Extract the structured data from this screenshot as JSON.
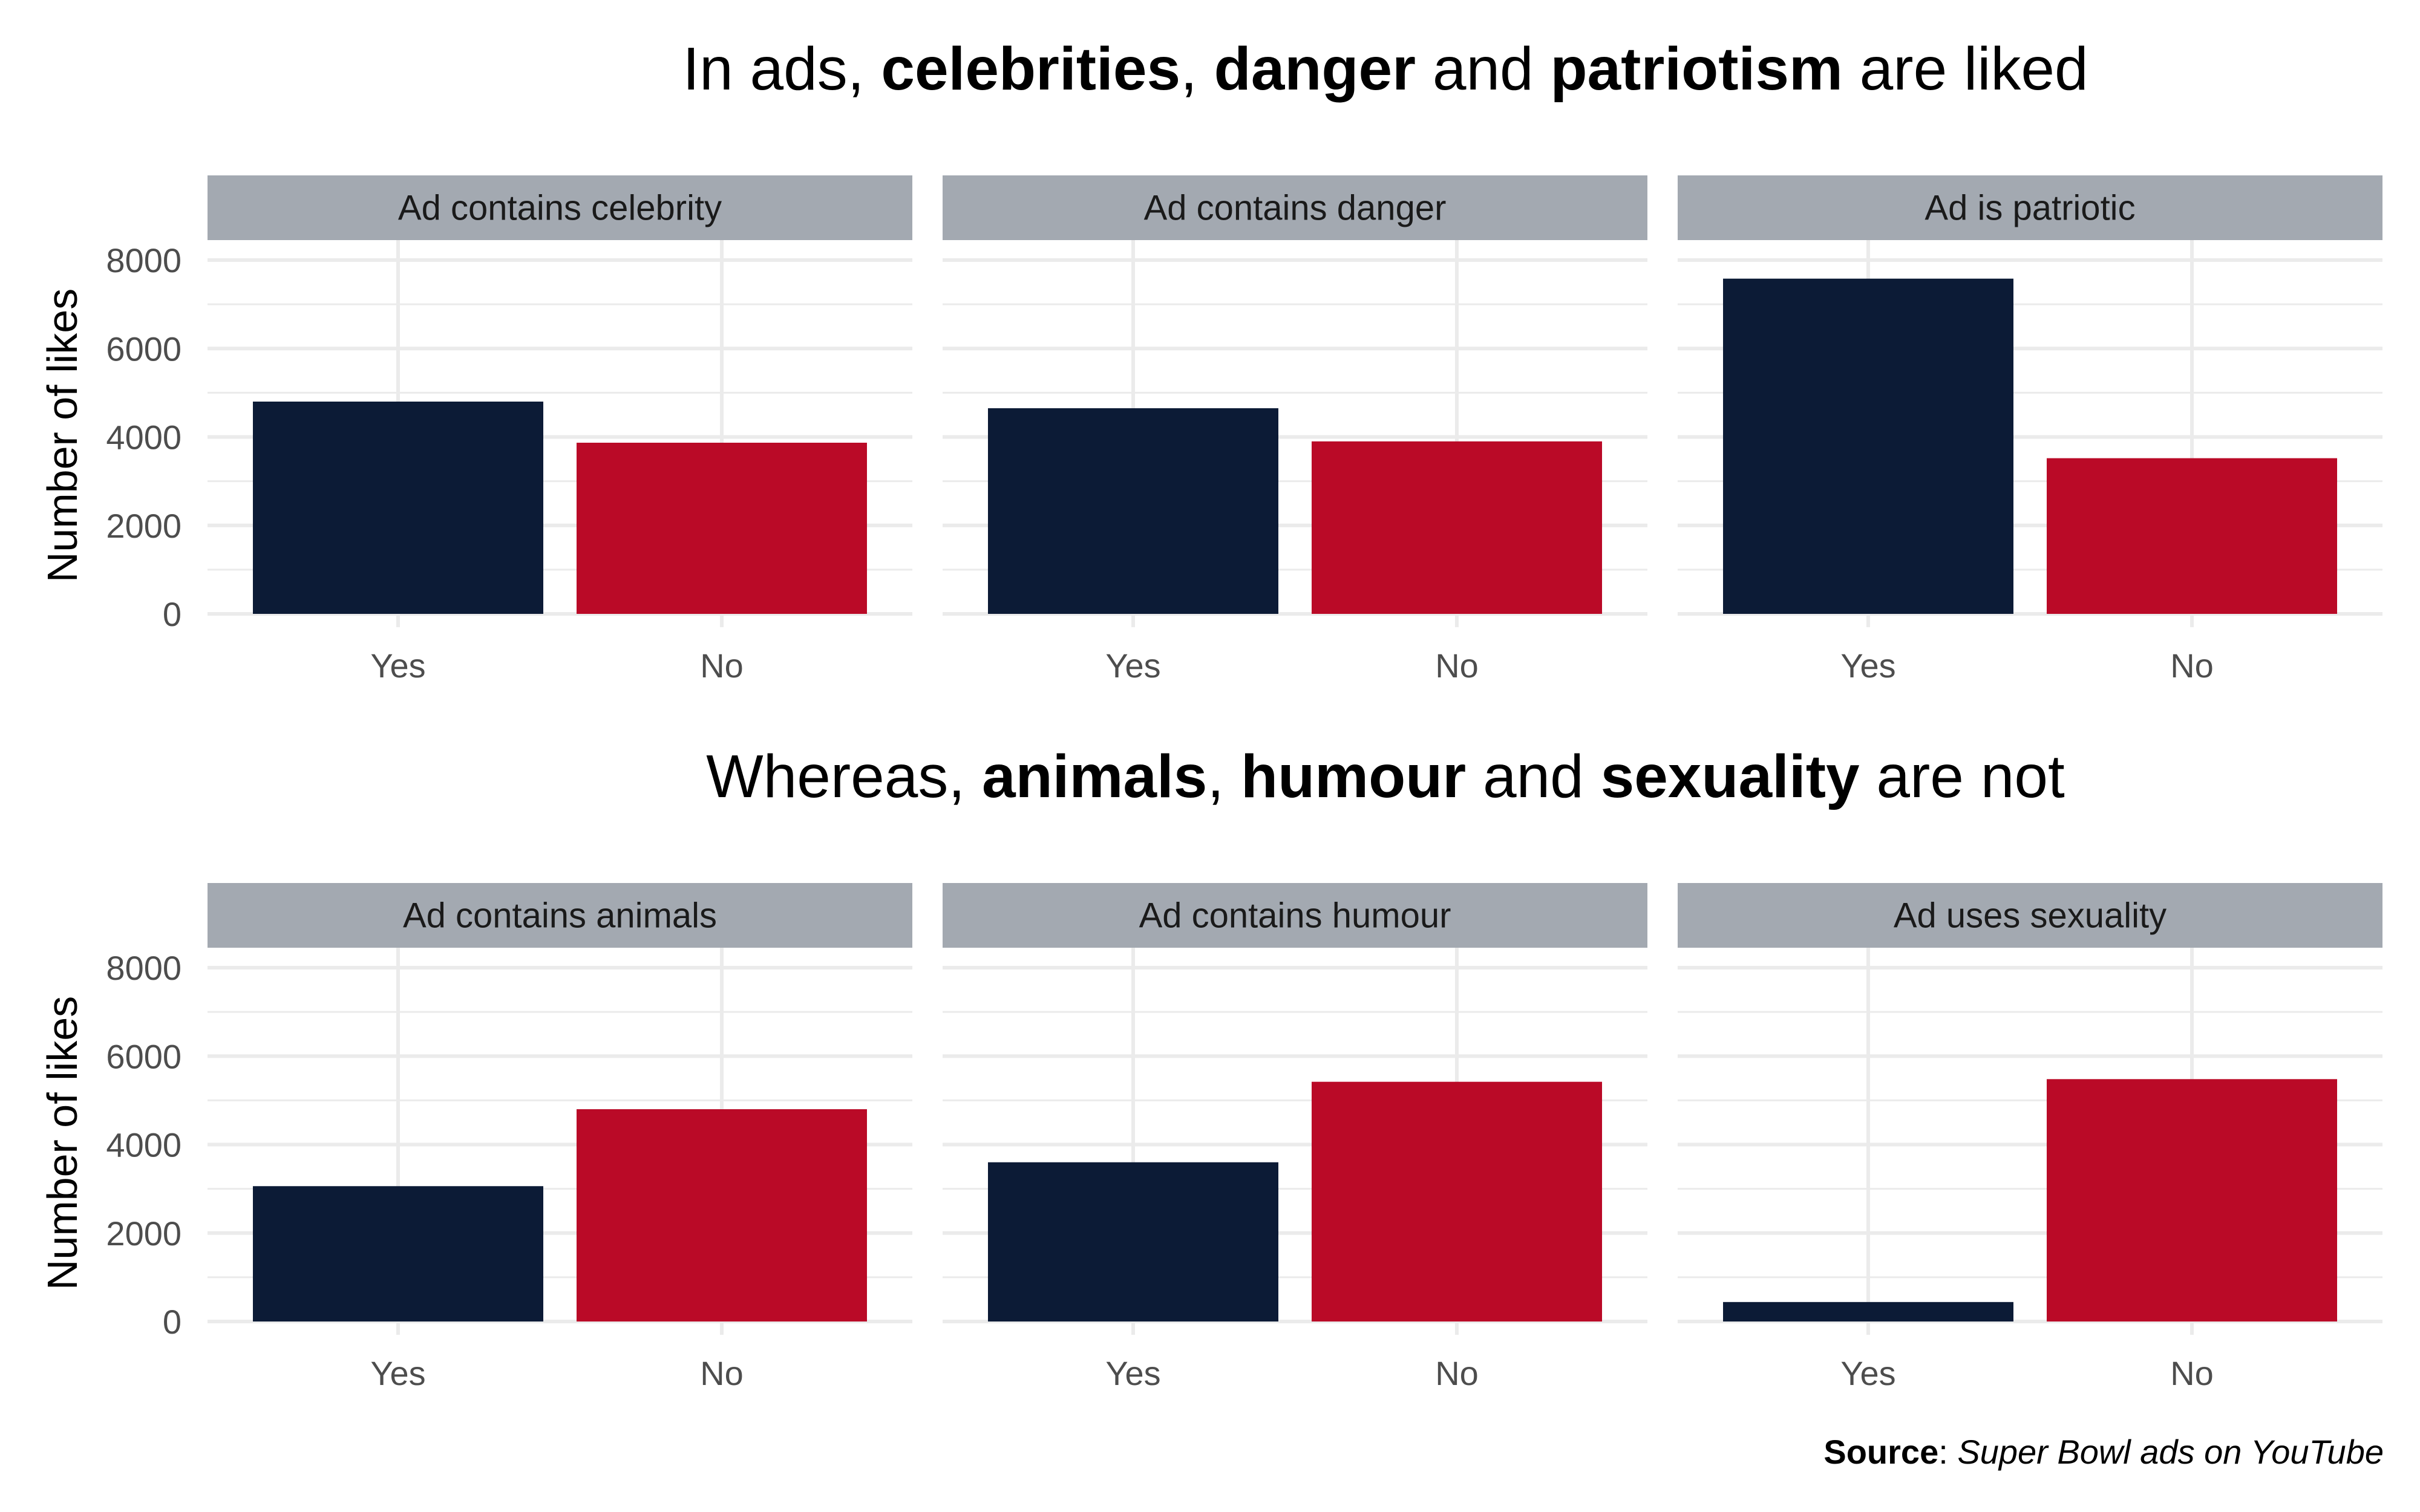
{
  "rows": [
    {
      "title": {
        "t1": "In ads, ",
        "b1": "celebrities",
        "t2": ", ",
        "b2": "danger",
        "t3": " and ",
        "b3": "patriotism",
        "t4": " are liked"
      }
    },
    {
      "title": {
        "t1": "Whereas, ",
        "b1": "animals",
        "t2": ", ",
        "b2": "humour",
        "t3": " and ",
        "b3": "sexuality",
        "t4": " are not"
      }
    }
  ],
  "caption": {
    "label": "Source",
    "sep": ": ",
    "text": "Super Bowl ads on YouTube"
  },
  "colors": {
    "yes": "#0c1b36",
    "no": "#ba0a27",
    "strip": "#a3a9b1",
    "grid": "#ebebeb"
  },
  "chart_data": {
    "type": "bar",
    "categories": [
      "Yes",
      "No"
    ],
    "ylabel": "Number of likes",
    "ylim": [
      0,
      9850
    ],
    "yticks": [
      0,
      2000,
      4000,
      6000,
      8000
    ],
    "grid": true,
    "legend": "none",
    "facets": [
      {
        "label": "Ad contains celebrity",
        "values": [
          4800,
          3870
        ]
      },
      {
        "label": "Ad contains danger",
        "values": [
          4650,
          3900
        ]
      },
      {
        "label": "Ad is patriotic",
        "values": [
          7580,
          3520
        ]
      },
      {
        "label": "Ad contains animals",
        "values": [
          3060,
          4800
        ]
      },
      {
        "label": "Ad contains humour",
        "values": [
          3600,
          5420
        ]
      },
      {
        "label": "Ad uses sexuality",
        "values": [
          440,
          5480
        ]
      }
    ]
  }
}
